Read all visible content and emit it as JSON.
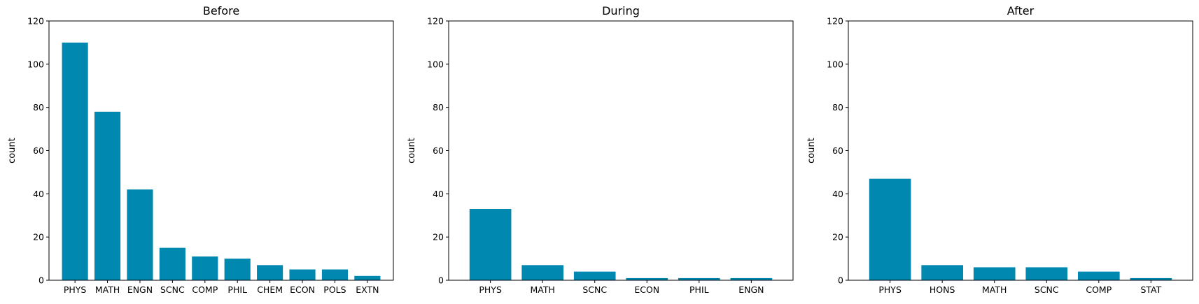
{
  "bar_color": "#0088b0",
  "chart_data": [
    {
      "type": "bar",
      "title": "Before",
      "xlabel": "",
      "ylabel": "count",
      "ylim": [
        0,
        120
      ],
      "yticks": [
        0,
        20,
        40,
        60,
        80,
        100,
        120
      ],
      "categories": [
        "PHYS",
        "MATH",
        "ENGN",
        "SCNC",
        "COMP",
        "PHIL",
        "CHEM",
        "ECON",
        "POLS",
        "EXTN"
      ],
      "values": [
        110,
        78,
        42,
        15,
        11,
        10,
        7,
        5,
        5,
        2
      ]
    },
    {
      "type": "bar",
      "title": "During",
      "xlabel": "",
      "ylabel": "count",
      "ylim": [
        0,
        120
      ],
      "yticks": [
        0,
        20,
        40,
        60,
        80,
        100,
        120
      ],
      "categories": [
        "PHYS",
        "MATH",
        "SCNC",
        "ECON",
        "PHIL",
        "ENGN"
      ],
      "values": [
        33,
        7,
        4,
        1,
        1,
        1
      ]
    },
    {
      "type": "bar",
      "title": "After",
      "xlabel": "",
      "ylabel": "count",
      "ylim": [
        0,
        120
      ],
      "yticks": [
        0,
        20,
        40,
        60,
        80,
        100,
        120
      ],
      "categories": [
        "PHYS",
        "HONS",
        "MATH",
        "SCNC",
        "COMP",
        "STAT"
      ],
      "values": [
        47,
        7,
        6,
        6,
        4,
        1
      ]
    }
  ]
}
